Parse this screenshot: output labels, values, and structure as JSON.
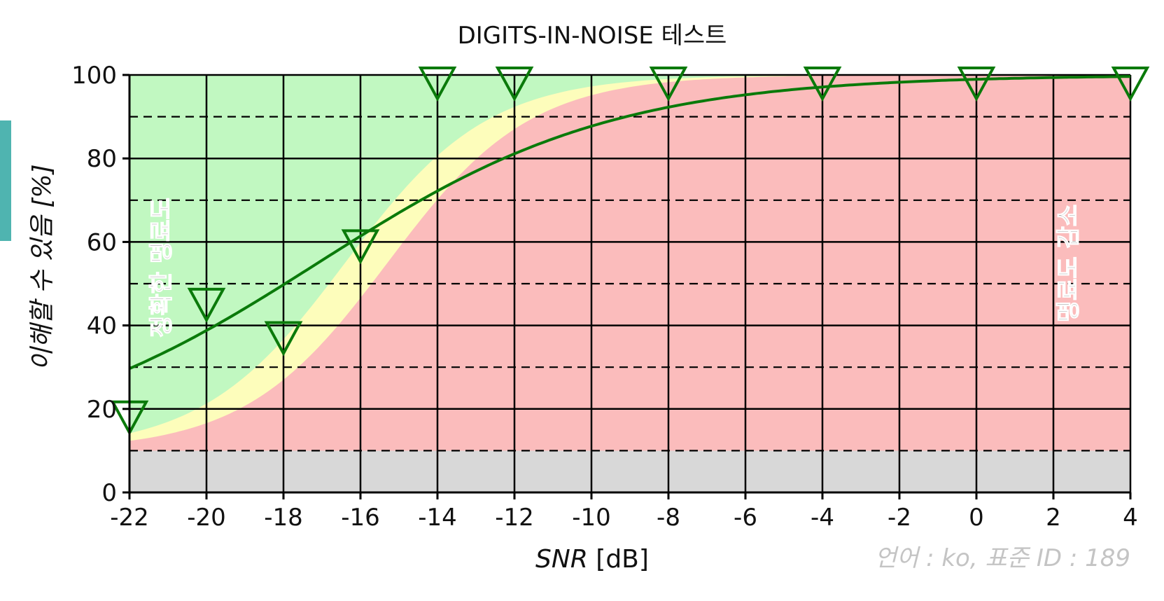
{
  "chart_data": {
    "type": "scatter",
    "title": "DIGITS-IN-NOISE 테스트",
    "xlabel_italic": "SNR",
    "xlabel_unit": " [dB]",
    "ylabel": "이해할 수 있음 [%]",
    "xlim": [
      -22,
      4
    ],
    "ylim": [
      0,
      100
    ],
    "x_ticks": [
      -22,
      -20,
      -18,
      -16,
      -14,
      -12,
      -10,
      -8,
      -6,
      -4,
      -2,
      0,
      2,
      4
    ],
    "y_ticks": [
      0,
      20,
      40,
      60,
      80,
      100
    ],
    "grid": true,
    "series": [
      {
        "marker": "triangle-down",
        "color": "#0a7a0a",
        "x": [
          -22,
          -20,
          -18,
          -16,
          -14,
          -12,
          -8,
          -4,
          0,
          4
        ],
        "y": [
          19,
          46,
          38,
          60,
          99,
          99,
          99,
          99,
          99,
          99
        ]
      }
    ],
    "fit_curve": {
      "color": "#0a7a0a",
      "midpoint": -17.1,
      "slope": 0.26,
      "floor": 10
    },
    "regions": {
      "green_label": "정확한 명료도",
      "red_label": "명료도 감소",
      "colors": {
        "green": "#c1f8c1",
        "yellow": "#fdfdbb",
        "red": "#fbbcbc",
        "gray": "#d8d8d8"
      },
      "floor_percent": 10
    },
    "footnote": "언어 : ko, 표준 ID : 189"
  }
}
